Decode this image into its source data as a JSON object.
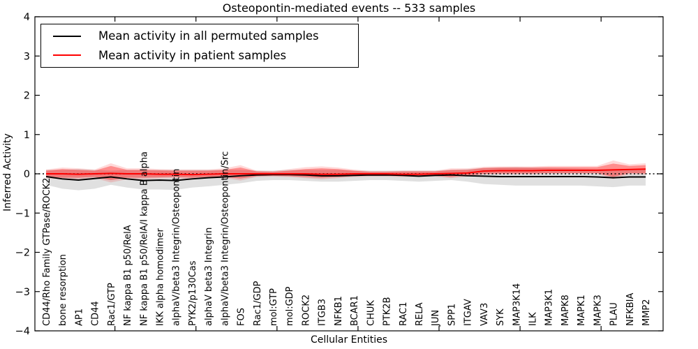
{
  "chart_data": {
    "type": "line",
    "title": "Osteopontin-mediated events -- 533 samples",
    "xlabel": "Cellular Entities",
    "ylabel": "Inferred Activity",
    "ylim": [
      -4,
      4
    ],
    "yticks": [
      -4,
      -3,
      -2,
      -1,
      0,
      1,
      2,
      3,
      4
    ],
    "grid": false,
    "legend_position": "upper left",
    "zero_line": {
      "y": 0,
      "style": "dotted",
      "color": "#000000"
    },
    "categories": [
      "CD44/Rho Family GTPase/ROCK2",
      "bone resorption",
      "AP1",
      "CD44",
      "Rac1/GTP",
      "NF kappa B1 p50/RelA",
      "NF kappa B1 p50/RelA/I kappa B alpha",
      "IKK alpha homodimer",
      "alphaV/beta3 Integrin/Osteopontin",
      "PYK2/p130Cas",
      "alphaV beta3 Integrin",
      "alphaV/beta3 Integrin/Osteopontin/Src",
      "FOS",
      "Rac1/GDP",
      "mol:GTP",
      "mol:GDP",
      "ROCK2",
      "ITGB3",
      "NFKB1",
      "BCAR1",
      "CHUK",
      "PTK2B",
      "RAC1",
      "RELA",
      "JUN",
      "SPP1",
      "ITGAV",
      "VAV3",
      "SYK",
      "MAP3K14",
      "ILK",
      "MAP3K1",
      "MAPK8",
      "MAPK1",
      "MAPK3",
      "PLAU",
      "NFKBIA",
      "MMP2"
    ],
    "series": [
      {
        "name": "Mean activity in all permuted samples",
        "color": "#000000",
        "values": [
          -0.07,
          -0.13,
          -0.16,
          -0.12,
          -0.08,
          -0.13,
          -0.17,
          -0.16,
          -0.17,
          -0.13,
          -0.1,
          -0.08,
          -0.05,
          -0.03,
          -0.02,
          -0.02,
          -0.03,
          -0.05,
          -0.05,
          -0.04,
          -0.03,
          -0.03,
          -0.04,
          -0.06,
          -0.04,
          -0.03,
          -0.05,
          -0.06,
          -0.07,
          -0.07,
          -0.07,
          -0.07,
          -0.07,
          -0.07,
          -0.08,
          -0.1,
          -0.08,
          -0.08
        ],
        "band": {
          "color": "#000000",
          "opacity": 0.12,
          "upper": [
            0.1,
            0.1,
            0.12,
            0.1,
            0.08,
            0.1,
            0.1,
            0.1,
            0.1,
            0.1,
            0.1,
            0.1,
            0.1,
            0.08,
            0.08,
            0.1,
            0.1,
            0.1,
            0.1,
            0.08,
            0.08,
            0.08,
            0.08,
            0.08,
            0.08,
            0.1,
            0.12,
            0.15,
            0.16,
            0.17,
            0.16,
            0.15,
            0.14,
            0.13,
            0.12,
            0.12,
            0.12,
            0.12
          ],
          "lower": [
            -0.28,
            -0.38,
            -0.42,
            -0.38,
            -0.28,
            -0.35,
            -0.4,
            -0.4,
            -0.41,
            -0.35,
            -0.32,
            -0.28,
            -0.24,
            -0.18,
            -0.16,
            -0.16,
            -0.18,
            -0.2,
            -0.2,
            -0.18,
            -0.16,
            -0.16,
            -0.18,
            -0.2,
            -0.18,
            -0.16,
            -0.2,
            -0.26,
            -0.28,
            -0.3,
            -0.3,
            -0.3,
            -0.3,
            -0.3,
            -0.32,
            -0.34,
            -0.3,
            -0.3
          ]
        }
      },
      {
        "name": "Mean activity in patient samples",
        "color": "#ff0000",
        "values": [
          0.0,
          0.0,
          -0.01,
          0.0,
          0.01,
          0.0,
          0.0,
          -0.01,
          -0.01,
          -0.02,
          -0.01,
          0.0,
          0.0,
          0.0,
          0.0,
          0.0,
          0.0,
          -0.01,
          -0.01,
          0.0,
          0.0,
          0.0,
          -0.01,
          -0.01,
          0.0,
          0.01,
          0.02,
          0.07,
          0.08,
          0.08,
          0.08,
          0.09,
          0.09,
          0.09,
          0.09,
          0.1,
          0.11,
          0.12
        ],
        "band": {
          "color": "#ff0000",
          "opacity": 0.35,
          "upper": [
            0.08,
            0.12,
            0.1,
            0.08,
            0.2,
            0.1,
            0.1,
            0.09,
            0.08,
            0.08,
            0.08,
            0.1,
            0.16,
            0.06,
            0.05,
            0.08,
            0.12,
            0.14,
            0.12,
            0.08,
            0.05,
            0.05,
            0.06,
            0.06,
            0.06,
            0.1,
            0.1,
            0.15,
            0.16,
            0.16,
            0.16,
            0.17,
            0.17,
            0.17,
            0.17,
            0.26,
            0.2,
            0.22
          ],
          "lower": [
            -0.08,
            -0.1,
            -0.1,
            -0.08,
            -0.16,
            -0.1,
            -0.1,
            -0.09,
            -0.08,
            -0.1,
            -0.08,
            -0.08,
            -0.12,
            -0.06,
            -0.05,
            -0.06,
            -0.08,
            -0.1,
            -0.08,
            -0.06,
            -0.05,
            -0.05,
            -0.06,
            -0.06,
            -0.05,
            -0.08,
            -0.04,
            0.0,
            0.01,
            0.01,
            0.01,
            0.02,
            0.02,
            0.02,
            0.02,
            -0.08,
            0.02,
            0.01
          ]
        },
        "outer_band": {
          "color": "#ff0000",
          "opacity": 0.15,
          "upper": [
            0.11,
            0.16,
            0.14,
            0.11,
            0.27,
            0.14,
            0.14,
            0.12,
            0.11,
            0.11,
            0.11,
            0.14,
            0.22,
            0.08,
            0.07,
            0.12,
            0.17,
            0.19,
            0.16,
            0.11,
            0.07,
            0.07,
            0.08,
            0.08,
            0.08,
            0.14,
            0.14,
            0.18,
            0.19,
            0.19,
            0.19,
            0.2,
            0.2,
            0.2,
            0.2,
            0.34,
            0.24,
            0.27
          ],
          "lower": [
            -0.11,
            -0.14,
            -0.14,
            -0.11,
            -0.22,
            -0.14,
            -0.14,
            -0.12,
            -0.11,
            -0.14,
            -0.11,
            -0.11,
            -0.17,
            -0.08,
            -0.07,
            -0.08,
            -0.11,
            -0.14,
            -0.11,
            -0.08,
            -0.07,
            -0.07,
            -0.08,
            -0.08,
            -0.07,
            -0.11,
            -0.07,
            -0.02,
            -0.01,
            -0.01,
            -0.01,
            0.0,
            0.0,
            0.0,
            0.0,
            -0.13,
            -0.01,
            -0.02
          ]
        }
      }
    ]
  }
}
